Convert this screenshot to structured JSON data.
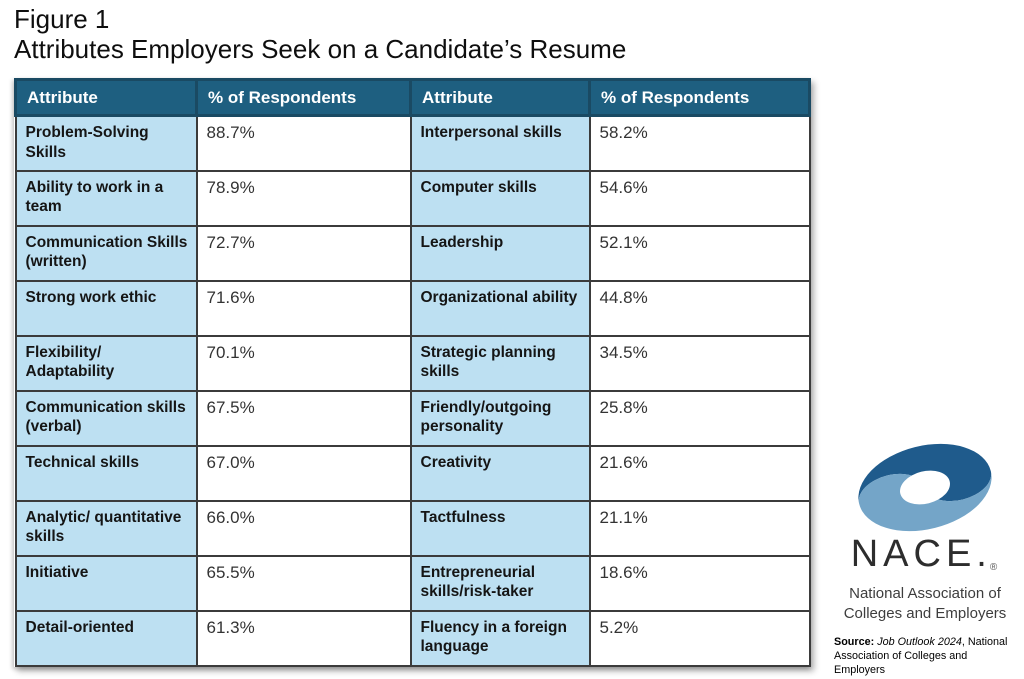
{
  "figure": {
    "label": "Figure 1",
    "title": "Attributes Employers Seek on a Candidate’s Resume"
  },
  "table": {
    "headers": [
      "Attribute",
      "% of Respondents",
      "Attribute",
      "% of Respondents"
    ],
    "rows": [
      {
        "left_attribute": "Problem-Solving Skills",
        "left_value": "88.7%",
        "right_attribute": "Interpersonal skills",
        "right_value": "58.2%"
      },
      {
        "left_attribute": "Ability to work in a team",
        "left_value": "78.9%",
        "right_attribute": "Computer skills",
        "right_value": "54.6%"
      },
      {
        "left_attribute": "Communication Skills (written)",
        "left_value": "72.7%",
        "right_attribute": "Leadership",
        "right_value": "52.1%"
      },
      {
        "left_attribute": "Strong work ethic",
        "left_value": "71.6%",
        "right_attribute": "Organizational ability",
        "right_value": "44.8%"
      },
      {
        "left_attribute": "Flexibility/ Adaptability",
        "left_value": "70.1%",
        "right_attribute": "Strategic planning skills",
        "right_value": "34.5%"
      },
      {
        "left_attribute": "Communication skills (verbal)",
        "left_value": "67.5%",
        "right_attribute": "Friendly/outgoing personality",
        "right_value": "25.8%"
      },
      {
        "left_attribute": "Technical skills",
        "left_value": "67.0%",
        "right_attribute": "Creativity",
        "right_value": "21.6%"
      },
      {
        "left_attribute": "Analytic/ quantitative skills",
        "left_value": "66.0%",
        "right_attribute": "Tactfulness",
        "right_value": "21.1%"
      },
      {
        "left_attribute": "Initiative",
        "left_value": "65.5%",
        "right_attribute": "Entrepreneurial skills/risk-taker",
        "right_value": "18.6%"
      },
      {
        "left_attribute": "Detail-oriented",
        "left_value": "61.3%",
        "right_attribute": "Fluency in a foreign language",
        "right_value": "5.2%"
      }
    ]
  },
  "chart_data": {
    "type": "table",
    "title": "Attributes Employers Seek on a Candidate’s Resume",
    "columns": [
      "Attribute",
      "% of Respondents"
    ],
    "items": [
      {
        "attribute": "Problem-Solving Skills",
        "percent": 88.7
      },
      {
        "attribute": "Ability to work in a team",
        "percent": 78.9
      },
      {
        "attribute": "Communication Skills (written)",
        "percent": 72.7
      },
      {
        "attribute": "Strong work ethic",
        "percent": 71.6
      },
      {
        "attribute": "Flexibility/Adaptability",
        "percent": 70.1
      },
      {
        "attribute": "Communication skills (verbal)",
        "percent": 67.5
      },
      {
        "attribute": "Technical skills",
        "percent": 67.0
      },
      {
        "attribute": "Analytic/quantitative skills",
        "percent": 66.0
      },
      {
        "attribute": "Initiative",
        "percent": 65.5
      },
      {
        "attribute": "Detail-oriented",
        "percent": 61.3
      },
      {
        "attribute": "Interpersonal skills",
        "percent": 58.2
      },
      {
        "attribute": "Computer skills",
        "percent": 54.6
      },
      {
        "attribute": "Leadership",
        "percent": 52.1
      },
      {
        "attribute": "Organizational ability",
        "percent": 44.8
      },
      {
        "attribute": "Strategic planning skills",
        "percent": 34.5
      },
      {
        "attribute": "Friendly/outgoing personality",
        "percent": 25.8
      },
      {
        "attribute": "Creativity",
        "percent": 21.6
      },
      {
        "attribute": "Tactfulness",
        "percent": 21.1
      },
      {
        "attribute": "Entrepreneurial skills/risk-taker",
        "percent": 18.6
      },
      {
        "attribute": "Fluency in a foreign language",
        "percent": 5.2
      }
    ]
  },
  "branding": {
    "logo_text": "NACE.",
    "registered_mark": "®",
    "org_name_line1": "National Association of",
    "org_name_line2": "Colleges and Employers",
    "source_bold": "Source:",
    "source_italic": "Job Outlook 2024",
    "source_rest": ", National Association of Colleges and Employers"
  },
  "colors": {
    "header_bg": "#1E5F80",
    "header_border": "#1A4A63",
    "cell_blue": "#BDE0F2",
    "cell_border": "#3B3B3B",
    "logo_dark_blue": "#1F5B8C",
    "logo_light_blue": "#74A5C8"
  }
}
